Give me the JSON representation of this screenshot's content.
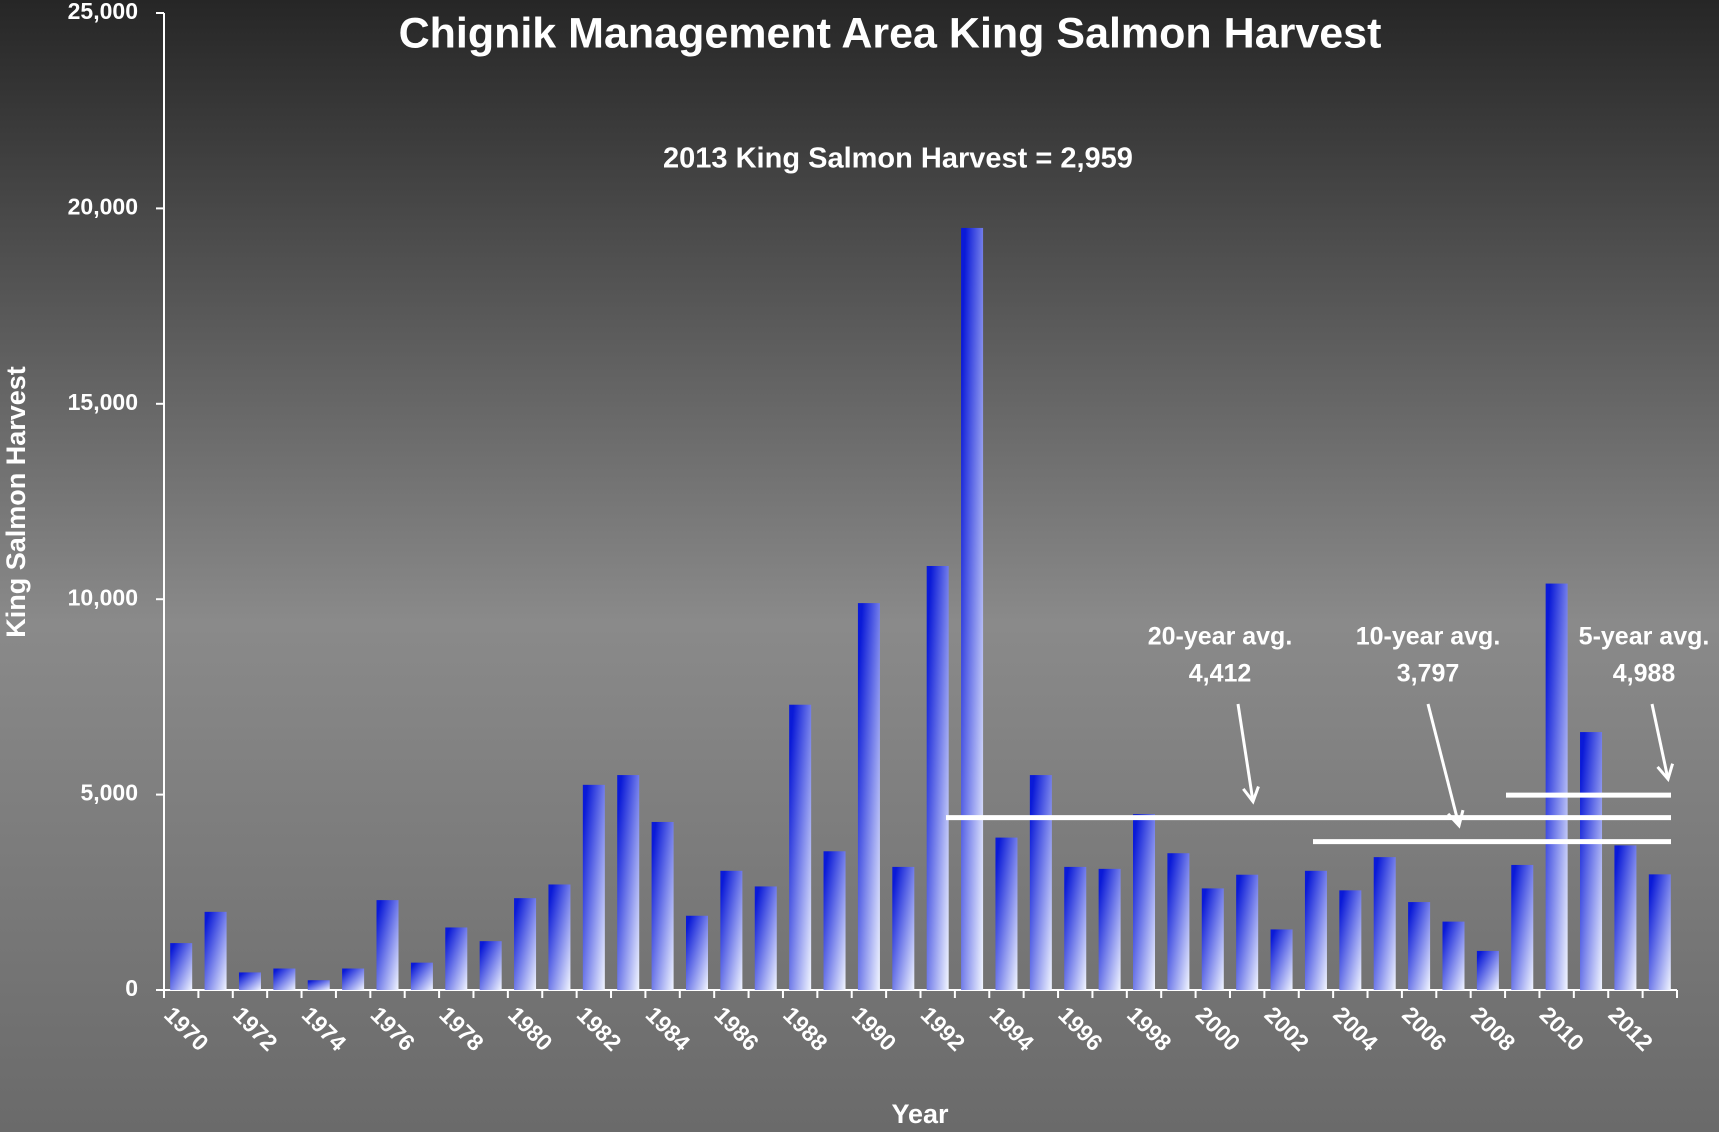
{
  "chart_data": {
    "type": "bar",
    "title": "Chignik Management Area King Salmon Harvest",
    "subtitle": "2013  King Salmon Harvest = 2,959",
    "x_label": "Year",
    "y_label": "King Salmon Harvest",
    "categories": [
      "1970",
      null,
      "1972",
      null,
      "1974",
      null,
      "1976",
      null,
      "1978",
      null,
      "1980",
      null,
      "1982",
      null,
      "1984",
      null,
      "1986",
      null,
      "1988",
      null,
      "1990",
      null,
      "1992",
      null,
      "1994",
      null,
      "1996",
      null,
      "1998",
      null,
      "2000",
      null,
      "2002",
      null,
      "2004",
      null,
      "2006",
      null,
      "2008",
      null,
      "2010",
      null,
      "2012",
      null
    ],
    "values": [
      1200,
      2000,
      450,
      550,
      250,
      550,
      2300,
      700,
      1600,
      1250,
      2350,
      2700,
      5250,
      5500,
      4300,
      1900,
      3050,
      2650,
      7300,
      3550,
      9900,
      3150,
      10850,
      19500,
      3900,
      5500,
      3150,
      3100,
      4500,
      3500,
      2600,
      2950,
      1550,
      3050,
      2550,
      3400,
      2250,
      1750,
      1000,
      3200,
      10400,
      6600,
      3700,
      2959
    ],
    "colors": [
      "#0a1ad8",
      "#f2f6ff"
    ],
    "averages": [
      {
        "label": "20-year avg.",
        "value": 4412,
        "value_label": "4,412"
      },
      {
        "label": "10-year avg.",
        "value": 3797,
        "value_label": "3,797"
      },
      {
        "label": "5-year avg.",
        "value": 4988,
        "value_label": "4,988"
      }
    ],
    "ylim": [
      0,
      25000
    ],
    "yticks": [
      0,
      {
        "value": 5000,
        "label": "5,000"
      },
      {
        "value": 10000,
        "label": "10,000"
      },
      {
        "value": 15000,
        "label": "15,000"
      },
      {
        "value": 20000,
        "label": "20,000"
      },
      {
        "value": 25000,
        "label": "25,000"
      }
    ]
  }
}
